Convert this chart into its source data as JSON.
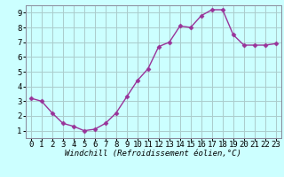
{
  "x": [
    0,
    1,
    2,
    3,
    4,
    5,
    6,
    7,
    8,
    9,
    10,
    11,
    12,
    13,
    14,
    15,
    16,
    17,
    18,
    19,
    20,
    21,
    22,
    23
  ],
  "y": [
    3.2,
    3.0,
    2.2,
    1.5,
    1.3,
    1.0,
    1.1,
    1.5,
    2.2,
    3.3,
    4.4,
    5.2,
    6.7,
    7.0,
    8.1,
    8.0,
    8.8,
    9.2,
    9.2,
    7.5,
    6.8,
    6.8,
    6.8,
    6.9
  ],
  "line_color": "#993399",
  "marker": "D",
  "marker_size": 2.5,
  "bg_color": "#ccffff",
  "grid_color": "#aacccc",
  "xlabel": "Windchill (Refroidissement éolien,°C)",
  "ylabel_ticks": [
    1,
    2,
    3,
    4,
    5,
    6,
    7,
    8,
    9
  ],
  "xlim": [
    -0.5,
    23.5
  ],
  "ylim": [
    0.5,
    9.5
  ],
  "xlabel_fontsize": 6.5,
  "tick_fontsize": 6.5,
  "spine_color": "#888899",
  "linewidth": 1.0
}
